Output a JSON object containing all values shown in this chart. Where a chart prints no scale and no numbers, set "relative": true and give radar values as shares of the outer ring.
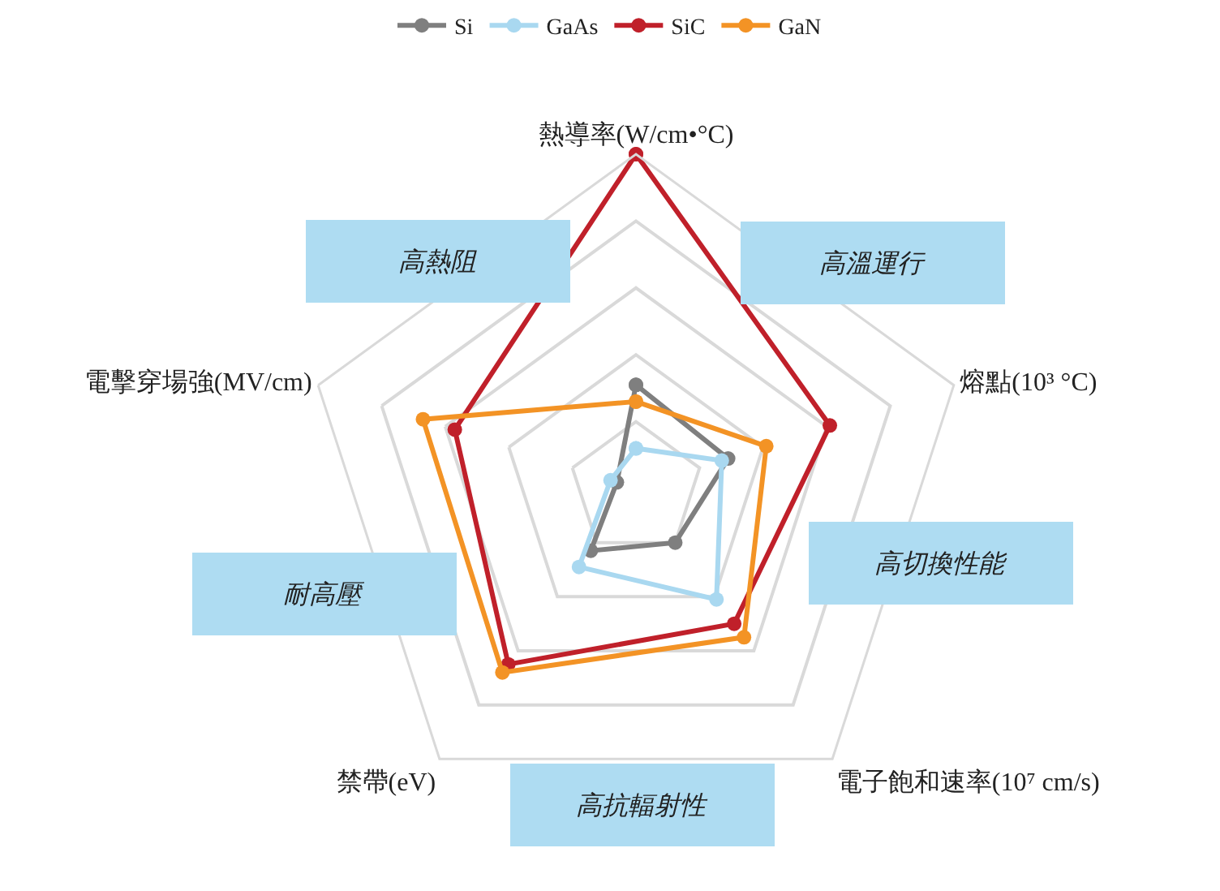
{
  "chart_data": {
    "type": "radar",
    "relative": true,
    "grid": true,
    "legend": "top",
    "marker": "circle",
    "line_style": "solid",
    "categories": [
      "熱導率(W/cm•°C)",
      "熔點(10³ °C)",
      "電子飽和速率(10⁷ cm/s)",
      "禁帶(eV)",
      "電擊穿場強(MV/cm)"
    ],
    "series": [
      {
        "name": "Si",
        "color": "#7f7f7f",
        "values": [
          0.31,
          0.29,
          0.2,
          0.23,
          0.06
        ]
      },
      {
        "name": "GaAs",
        "color": "#a9d8f0",
        "values": [
          0.12,
          0.27,
          0.41,
          0.29,
          0.08
        ]
      },
      {
        "name": "SiC",
        "color": "#c0202a",
        "values": [
          1.0,
          0.61,
          0.5,
          0.65,
          0.57
        ]
      },
      {
        "name": "GaN",
        "color": "#f39325",
        "values": [
          0.26,
          0.41,
          0.55,
          0.68,
          0.67
        ]
      }
    ],
    "annotations": [
      "高熱阻",
      "高溫運行",
      "耐高壓",
      "高切換性能",
      "高抗輻射性"
    ]
  }
}
